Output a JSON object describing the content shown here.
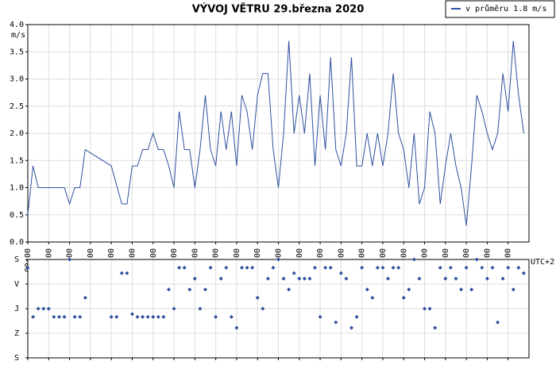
{
  "chart_data": [
    {
      "type": "line",
      "title": "VÝVOJ VĚTRU  29.března 2020",
      "y_label": "m/s",
      "x_note": "UTC+2",
      "legend": "upper right",
      "grid": true,
      "x": [
        0,
        0.25,
        0.5,
        1.75,
        2,
        2.25,
        2.5,
        2.75,
        4,
        4.5,
        4.75,
        5,
        5.25,
        5.5,
        5.75,
        6,
        6.25,
        6.5,
        6.75,
        7,
        7.25,
        7.5,
        7.75,
        8,
        8.25,
        8.5,
        8.75,
        9,
        9.25,
        9.5,
        9.75,
        10,
        10.25,
        10.5,
        10.75,
        11,
        11.25,
        11.5,
        11.75,
        12,
        12.25,
        12.5,
        12.75,
        13,
        13.25,
        13.5,
        13.75,
        14,
        14.25,
        14.5,
        14.75,
        15,
        15.25,
        15.5,
        15.75,
        16,
        16.25,
        16.5,
        16.75,
        17,
        17.25,
        17.5,
        17.75,
        18,
        18.25,
        18.5,
        18.75,
        19,
        19.25,
        19.5,
        19.75,
        20,
        20.25,
        20.5,
        20.75,
        21,
        21.25,
        21.5,
        21.75,
        22,
        22.25,
        22.5,
        22.75,
        23,
        23.25,
        23.5,
        23.75
      ],
      "series": [
        {
          "name": "v průměru 1.8 m/s",
          "color": "#2f4f9f",
          "values": [
            0.5,
            1.4,
            1.0,
            1.0,
            0.7,
            1.0,
            1.0,
            1.7,
            1.4,
            0.7,
            0.7,
            1.4,
            1.4,
            1.7,
            1.7,
            2.0,
            1.7,
            1.7,
            1.4,
            1.0,
            2.4,
            1.7,
            1.7,
            1.0,
            1.7,
            2.7,
            1.7,
            1.4,
            2.4,
            1.7,
            2.4,
            1.4,
            2.7,
            2.4,
            1.7,
            2.7,
            3.1,
            3.1,
            1.7,
            1.0,
            2.0,
            3.7,
            2.0,
            2.7,
            2.0,
            3.1,
            1.4,
            2.7,
            1.7,
            3.4,
            1.7,
            1.4,
            2.0,
            3.4,
            1.4,
            1.4,
            2.0,
            1.4,
            2.0,
            1.4,
            2.0,
            3.1,
            2.0,
            1.7,
            1.0,
            2.0,
            0.7,
            1.0,
            2.4,
            2.0,
            0.7,
            1.4,
            2.0,
            1.4,
            1.0,
            0.3,
            1.4,
            2.7,
            2.4,
            2.0,
            1.7,
            2.0,
            3.1,
            2.4,
            3.7,
            2.7,
            2.0
          ]
        }
      ],
      "xlim": [
        0,
        24
      ],
      "xticks": [
        {
          "value": 0,
          "label": "00:00"
        },
        {
          "value": 1,
          "label": "01:00"
        },
        {
          "value": 2,
          "label": "02:00"
        },
        {
          "value": 3,
          "label": "03:00"
        },
        {
          "value": 4,
          "label": "04:00"
        },
        {
          "value": 5,
          "label": "05:00"
        },
        {
          "value": 6,
          "label": "06:00"
        },
        {
          "value": 7,
          "label": "07:00"
        },
        {
          "value": 8,
          "label": "08:00"
        },
        {
          "value": 9,
          "label": "09:00"
        },
        {
          "value": 10,
          "label": "10:00"
        },
        {
          "value": 11,
          "label": "11:00"
        },
        {
          "value": 12,
          "label": "12:00"
        },
        {
          "value": 13,
          "label": "13:00"
        },
        {
          "value": 14,
          "label": "14:00"
        },
        {
          "value": 15,
          "label": "15:00"
        },
        {
          "value": 16,
          "label": "16:00"
        },
        {
          "value": 17,
          "label": "17:00"
        },
        {
          "value": 18,
          "label": "18:00"
        },
        {
          "value": 19,
          "label": "19:00"
        },
        {
          "value": 20,
          "label": "20:00"
        },
        {
          "value": 21,
          "label": "21:00"
        },
        {
          "value": 22,
          "label": "22:00"
        },
        {
          "value": 23,
          "label": "23:00"
        }
      ],
      "ylim": [
        0,
        4
      ],
      "yticks": [
        {
          "value": 0,
          "label": "0.0"
        },
        0.5,
        {
          "value": 1,
          "label": "1.0"
        },
        1.5,
        {
          "value": 2,
          "label": "2.0"
        },
        2.5,
        {
          "value": 3,
          "label": "3.0"
        },
        3.5,
        {
          "value": 4,
          "label": "4.0"
        }
      ]
    },
    {
      "type": "scatter",
      "grid": true,
      "color": "#2f4f9f",
      "x": [
        0,
        0.25,
        0.5,
        0.75,
        1,
        1.25,
        1.5,
        1.75,
        2,
        2.25,
        2.5,
        2.75,
        4,
        4.25,
        4.5,
        4.75,
        5,
        5.25,
        5.5,
        5.75,
        6,
        6.25,
        6.5,
        6.75,
        7,
        7.25,
        7.5,
        7.75,
        8,
        8.25,
        8.5,
        8.75,
        9,
        9.25,
        9.5,
        9.75,
        10,
        10.25,
        10.5,
        10.75,
        11,
        11.25,
        11.5,
        11.75,
        12,
        12.25,
        12.5,
        12.75,
        13,
        13.25,
        13.5,
        13.75,
        14,
        14.25,
        14.5,
        14.75,
        15,
        15.25,
        15.5,
        15.75,
        16,
        16.25,
        16.5,
        16.75,
        17,
        17.25,
        17.5,
        17.75,
        18,
        18.25,
        18.5,
        18.75,
        19,
        19.25,
        19.5,
        19.75,
        20,
        20.25,
        20.5,
        20.75,
        21,
        21.25,
        21.5,
        21.75,
        22,
        22.25,
        22.5,
        22.75,
        23,
        23.25,
        23.5,
        23.75
      ],
      "values": [
        30,
        210,
        180,
        180,
        180,
        210,
        210,
        210,
        0,
        210,
        210,
        140,
        210,
        210,
        50,
        50,
        200,
        210,
        210,
        210,
        210,
        210,
        210,
        110,
        180,
        30,
        30,
        110,
        70,
        180,
        110,
        30,
        210,
        70,
        30,
        210,
        250,
        30,
        30,
        30,
        140,
        180,
        70,
        30,
        0,
        70,
        110,
        50,
        70,
        70,
        70,
        30,
        210,
        30,
        30,
        230,
        50,
        70,
        250,
        210,
        30,
        110,
        140,
        30,
        30,
        70,
        30,
        30,
        140,
        110,
        0,
        70,
        180,
        180,
        250,
        30,
        70,
        30,
        70,
        110,
        30,
        110,
        0,
        30,
        70,
        30,
        230,
        70,
        30,
        110,
        30,
        50
      ],
      "xlim": [
        0,
        24
      ],
      "xticks": [
        0,
        1,
        2,
        3,
        4,
        5,
        6,
        7,
        8,
        9,
        10,
        11,
        12,
        13,
        14,
        15,
        16,
        17,
        18,
        19,
        20,
        21,
        22,
        23
      ],
      "ylim": [
        360,
        0
      ],
      "yticks": [
        {
          "value": 0,
          "label": "S"
        },
        {
          "value": 90,
          "label": "V"
        },
        {
          "value": 180,
          "label": "J"
        },
        {
          "value": 270,
          "label": "Z"
        },
        {
          "value": 360,
          "label": "S"
        }
      ]
    }
  ]
}
